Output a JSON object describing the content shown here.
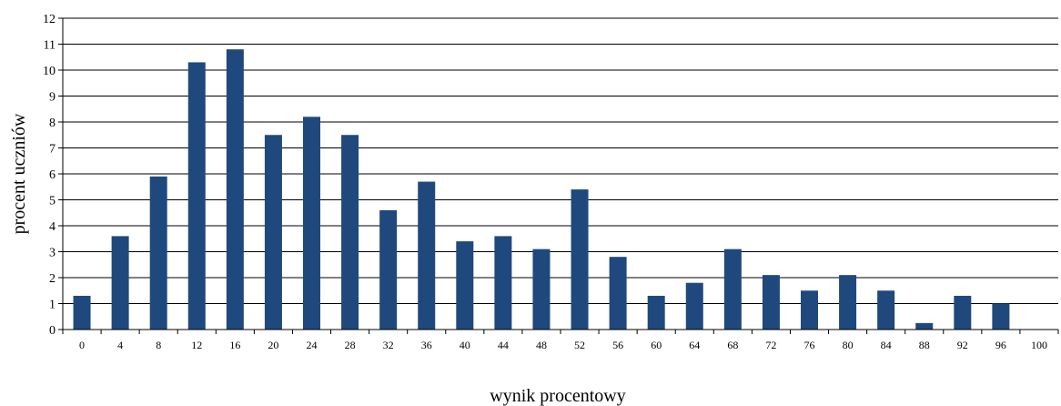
{
  "chart_data": {
    "type": "bar",
    "title": "",
    "xlabel": "wynik procentowy",
    "ylabel": "procent uczniów",
    "ylim": [
      0,
      12
    ],
    "yticks": [
      0,
      1,
      2,
      3,
      4,
      5,
      6,
      7,
      8,
      9,
      10,
      11,
      12
    ],
    "grid": true,
    "legend": "none",
    "bar_color": "#1f497d",
    "categories": [
      "0",
      "4",
      "8",
      "12",
      "16",
      "20",
      "24",
      "28",
      "32",
      "36",
      "40",
      "44",
      "48",
      "52",
      "56",
      "60",
      "64",
      "68",
      "72",
      "76",
      "80",
      "84",
      "88",
      "92",
      "96",
      "100"
    ],
    "values": [
      1.3,
      3.6,
      5.9,
      10.3,
      10.8,
      7.5,
      8.2,
      7.5,
      4.6,
      5.7,
      3.4,
      3.6,
      3.1,
      5.4,
      2.8,
      1.3,
      1.8,
      3.1,
      2.1,
      1.5,
      2.1,
      1.5,
      0.25,
      1.3,
      1.0,
      0
    ]
  }
}
